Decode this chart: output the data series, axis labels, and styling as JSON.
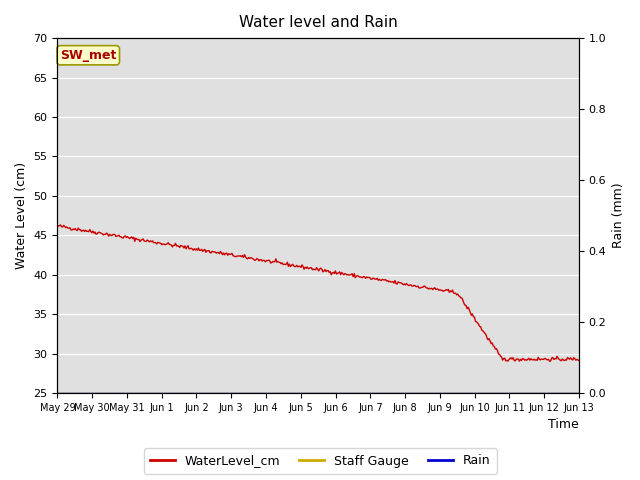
{
  "title": "Water level and Rain",
  "xlabel": "Time",
  "ylabel_left": "Water Level (cm)",
  "ylabel_right": "Rain (mm)",
  "annotation": "SW_met",
  "ylim_left": [
    25,
    70
  ],
  "ylim_right": [
    0.0,
    1.0
  ],
  "yticks_left": [
    25,
    30,
    35,
    40,
    45,
    50,
    55,
    60,
    65,
    70
  ],
  "yticks_right": [
    0.0,
    0.2,
    0.4,
    0.6,
    0.8,
    1.0
  ],
  "xtick_labels": [
    "May 29",
    "May 30",
    "May 31",
    "Jun 1",
    "Jun 2",
    "Jun 3",
    "Jun 4",
    "Jun 5",
    "Jun 6",
    "Jun 7",
    "Jun 8",
    "Jun 9",
    "Jun 10",
    "Jun 11",
    "Jun 12",
    "Jun 13"
  ],
  "water_color": "#cc0000",
  "staff_color": "#ccaa00",
  "rain_color": "#0000cc",
  "background_color": "#e0e0e0",
  "fig_background": "#ffffff",
  "legend_entries": [
    "WaterLevel_cm",
    "Staff Gauge",
    "Rain"
  ],
  "annotation_text_color": "#aa0000",
  "annotation_bg": "#ffffcc",
  "annotation_edge": "#999900"
}
